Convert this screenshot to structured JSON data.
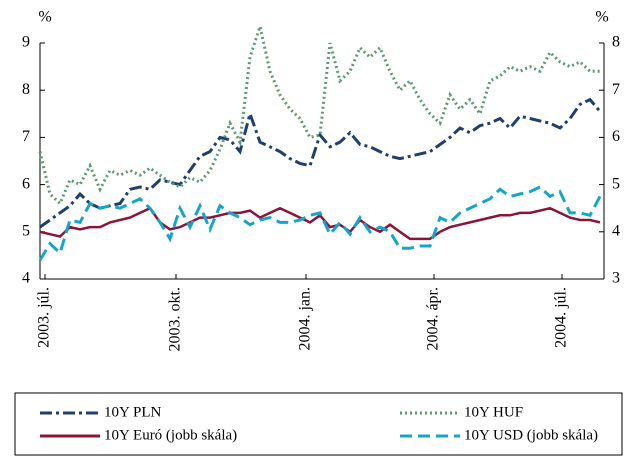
{
  "chart_data": {
    "type": "line",
    "ylabel": "%",
    "y2label": "%",
    "x": [
      0,
      1,
      2,
      3,
      4,
      5,
      6,
      7,
      8,
      9,
      10,
      11,
      12,
      13,
      14,
      15,
      16,
      17,
      18,
      19,
      20,
      21,
      22,
      23,
      24,
      25,
      26,
      27,
      28,
      29,
      30,
      31,
      32,
      33,
      34,
      35,
      36,
      37,
      38,
      39,
      40,
      41,
      42,
      43,
      44,
      45,
      46,
      47,
      48,
      49,
      50,
      51,
      52,
      53,
      54,
      55,
      56
    ],
    "xlim": [
      0,
      56.4
    ],
    "xticks": [
      {
        "value": 0.5,
        "label": "2003. júl."
      },
      {
        "value": 13.6,
        "label": "2003. okt."
      },
      {
        "value": 26.6,
        "label": "2004. jan."
      },
      {
        "value": 39.4,
        "label": "2004. ápr."
      },
      {
        "value": 52.2,
        "label": "2004. júl."
      }
    ],
    "ylim": [
      4,
      9
    ],
    "yticks": [
      4,
      5,
      6,
      7,
      8,
      9
    ],
    "y2lim": [
      3,
      8
    ],
    "y2ticks": [
      3,
      4,
      5,
      6,
      7,
      8
    ],
    "legend": "bottom",
    "series": [
      {
        "name": "10Y PLN",
        "color": "#1f3f6e",
        "style": "dashdot",
        "axis": "y",
        "values": [
          5.1,
          5.25,
          5.4,
          5.55,
          5.8,
          5.6,
          5.5,
          5.55,
          5.6,
          5.9,
          5.95,
          5.9,
          6.1,
          6.05,
          6.0,
          6.3,
          6.6,
          6.7,
          7.0,
          6.95,
          6.7,
          7.5,
          6.9,
          6.8,
          6.7,
          6.55,
          6.45,
          6.4,
          7.05,
          6.8,
          6.9,
          7.1,
          6.85,
          6.8,
          6.7,
          6.6,
          6.55,
          6.6,
          6.65,
          6.7,
          6.85,
          7.0,
          7.2,
          7.1,
          7.25,
          7.3,
          7.4,
          7.2,
          7.45,
          7.4,
          7.35,
          7.3,
          7.2,
          7.4,
          7.7,
          7.8,
          7.55
        ]
      },
      {
        "name": "10Y HUF",
        "color": "#5b9a72",
        "style": "dotted",
        "axis": "y",
        "values": [
          6.7,
          5.8,
          5.6,
          6.1,
          6.0,
          6.4,
          5.9,
          6.3,
          6.2,
          6.3,
          6.2,
          6.35,
          6.2,
          6.05,
          5.95,
          6.15,
          6.05,
          6.3,
          6.75,
          7.3,
          6.9,
          8.7,
          9.35,
          8.4,
          7.9,
          7.6,
          7.4,
          7.0,
          7.05,
          9.0,
          8.2,
          8.4,
          8.9,
          8.7,
          8.9,
          8.4,
          8.0,
          8.2,
          7.8,
          7.5,
          7.3,
          7.9,
          7.6,
          7.8,
          7.5,
          8.2,
          8.3,
          8.5,
          8.4,
          8.5,
          8.4,
          8.8,
          8.6,
          8.5,
          8.6,
          8.4,
          8.4
        ]
      },
      {
        "name": "10Y Euró (jobb skála)",
        "color": "#8b1538",
        "style": "solid",
        "axis": "y2",
        "values": [
          4.0,
          3.95,
          3.9,
          4.1,
          4.05,
          4.1,
          4.1,
          4.2,
          4.25,
          4.3,
          4.4,
          4.5,
          4.2,
          4.05,
          4.1,
          4.2,
          4.3,
          4.3,
          4.35,
          4.4,
          4.4,
          4.45,
          4.3,
          4.4,
          4.5,
          4.4,
          4.3,
          4.2,
          4.35,
          4.1,
          4.15,
          4.0,
          4.25,
          4.1,
          4.0,
          4.15,
          4.0,
          3.85,
          3.85,
          3.85,
          4.0,
          4.1,
          4.15,
          4.2,
          4.25,
          4.3,
          4.35,
          4.35,
          4.4,
          4.4,
          4.45,
          4.5,
          4.4,
          4.3,
          4.25,
          4.25,
          4.2
        ]
      },
      {
        "name": "10Y USD (jobb skála)",
        "color": "#15a5c9",
        "style": "dashed",
        "axis": "y2",
        "values": [
          3.4,
          3.75,
          3.55,
          4.25,
          4.2,
          4.6,
          4.5,
          4.55,
          4.5,
          4.6,
          4.7,
          4.5,
          4.2,
          3.85,
          4.5,
          4.1,
          4.55,
          4.05,
          4.55,
          4.4,
          4.3,
          4.15,
          4.25,
          4.3,
          4.2,
          4.2,
          4.25,
          4.35,
          4.4,
          3.95,
          4.2,
          3.95,
          4.3,
          4.0,
          4.1,
          4.0,
          3.65,
          3.65,
          3.7,
          3.7,
          4.3,
          4.2,
          4.4,
          4.5,
          4.6,
          4.7,
          4.9,
          4.75,
          4.8,
          4.85,
          4.95,
          4.75,
          4.85,
          4.4,
          4.4,
          4.35,
          4.75
        ]
      }
    ]
  }
}
